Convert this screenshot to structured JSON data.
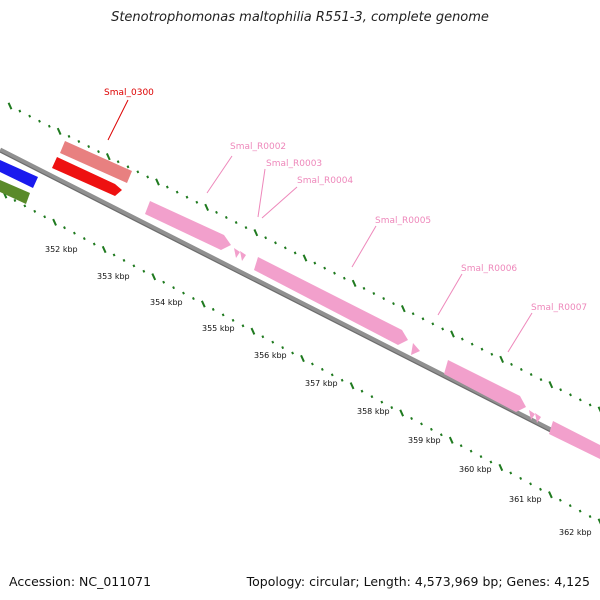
{
  "title": "Stenotrophomonas maltophilia R551-3, complete genome",
  "footer": {
    "accession": "Accession: NC_011071",
    "summary": "Topology: circular; Length: 4,573,969 bp; Genes: 4,125"
  },
  "colors": {
    "backbone": "#808080",
    "tick": "#1f7a1f",
    "gene_pink": "#f2a0cc",
    "gene_salmon": "#e88080",
    "gene_red": "#ee1111",
    "gene_blue": "#1a1aee",
    "gene_olive": "#5a8a2a",
    "label_red": "#dd0000",
    "label_pink": "#ee88bb"
  },
  "scale_labels": [
    "352 kbp",
    "353 kbp",
    "354 kbp",
    "355 kbp",
    "356 kbp",
    "357 kbp",
    "358 kbp",
    "359 kbp",
    "360 kbp",
    "361 kbp",
    "362 kbp"
  ],
  "gene_labels": [
    "Smal_0300",
    "Smal_R0002",
    "Smal_R0003",
    "Smal_R0004",
    "Smal_R0005",
    "Smal_R0006",
    "Smal_R0007"
  ]
}
